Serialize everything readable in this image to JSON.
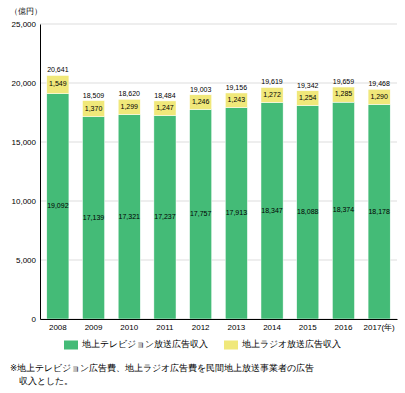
{
  "chart_data": {
    "type": "bar",
    "stacked": true,
    "y_label": "（億円）",
    "categories": [
      "2008",
      "2009",
      "2010",
      "2011",
      "2012",
      "2013",
      "2014",
      "2015",
      "2016",
      "2017(年)"
    ],
    "series": [
      {
        "name": "地上テレビジョン放送広告収入",
        "color": "#44bb77",
        "values": [
          19092,
          17139,
          17321,
          17237,
          17757,
          17913,
          18347,
          18088,
          18374,
          18178
        ],
        "value_labels": [
          "19,092",
          "17,139",
          "17,321",
          "17,237",
          "17,757",
          "17,913",
          "18,347",
          "18,088",
          "18,374",
          "18,178"
        ]
      },
      {
        "name": "地上ラジオ放送広告収入",
        "color": "#f0e87a",
        "values": [
          1549,
          1370,
          1299,
          1247,
          1246,
          1243,
          1272,
          1254,
          1285,
          1290
        ],
        "value_labels": [
          "1,549",
          "1,370",
          "1,299",
          "1,247",
          "1,246",
          "1,243",
          "1,272",
          "1,254",
          "1,285",
          "1,290"
        ]
      }
    ],
    "totals": {
      "values": [
        20641,
        18509,
        18620,
        18484,
        19003,
        19156,
        19619,
        19342,
        19659,
        19468
      ],
      "value_labels": [
        "20,641",
        "18,509",
        "18,620",
        "18,484",
        "19,003",
        "19,156",
        "19,619",
        "19,342",
        "19,659",
        "19,468"
      ]
    },
    "ylim": [
      0,
      25000
    ],
    "yticks": [
      0,
      {
        "value": 5000,
        "label": "5,000"
      },
      {
        "value": 10000,
        "label": "10,000"
      },
      {
        "value": 15000,
        "label": "15,000"
      },
      {
        "value": 20000,
        "label": "20,000"
      },
      {
        "value": 25000,
        "label": "25,000"
      }
    ],
    "grid": true,
    "data_labels": true,
    "legend": "bottom",
    "footnote": [
      "※地上テレビジョン広告費、地上ラジオ広告費を民間地上放送事業者の広告",
      "　収入とした。"
    ]
  }
}
